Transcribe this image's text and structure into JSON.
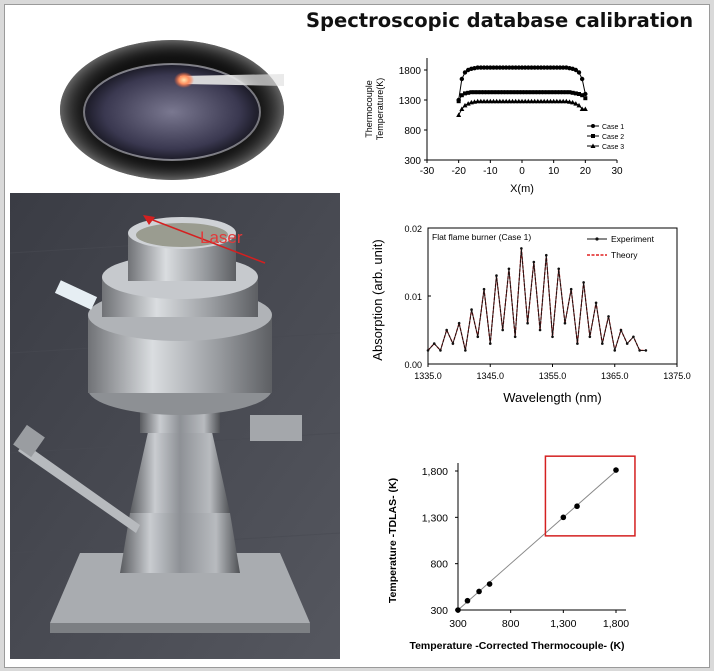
{
  "title": "Spectroscopic database calibration",
  "photo_label": "Laser",
  "colors": {
    "experiment": "#111111",
    "theory": "#e02020",
    "highlight_box": "#d42020",
    "laser_arrow": "#d42020"
  },
  "chart_data": [
    {
      "type": "line",
      "xlabel": "X(m)",
      "ylabel": "Thermocouple Temperature(K)",
      "xlim": [
        -30,
        30
      ],
      "ylim": [
        300,
        2000
      ],
      "xticks": [
        "-30",
        "-20",
        "-10",
        "0",
        "10",
        "20",
        "30"
      ],
      "yticks": [
        "300",
        "800",
        "1300",
        "1800"
      ],
      "x": [
        -20,
        -19,
        -18,
        -17,
        -16,
        -15,
        -14,
        -13,
        -12,
        -11,
        -10,
        -9,
        -8,
        -7,
        -6,
        -5,
        -4,
        -3,
        -2,
        -1,
        0,
        1,
        2,
        3,
        4,
        5,
        6,
        7,
        8,
        9,
        10,
        11,
        12,
        13,
        14,
        15,
        16,
        17,
        18,
        19,
        20
      ],
      "series": [
        {
          "name": "Case 1",
          "marker": "circle",
          "values": [
            1300,
            1650,
            1760,
            1800,
            1820,
            1830,
            1840,
            1840,
            1840,
            1840,
            1840,
            1840,
            1840,
            1840,
            1840,
            1840,
            1840,
            1840,
            1840,
            1840,
            1840,
            1840,
            1840,
            1840,
            1840,
            1840,
            1840,
            1840,
            1840,
            1840,
            1840,
            1840,
            1840,
            1840,
            1840,
            1830,
            1820,
            1800,
            1760,
            1650,
            1400
          ]
        },
        {
          "name": "Case 2",
          "marker": "square",
          "values": [
            1280,
            1380,
            1410,
            1420,
            1430,
            1430,
            1430,
            1430,
            1430,
            1430,
            1430,
            1430,
            1430,
            1430,
            1430,
            1430,
            1430,
            1430,
            1430,
            1430,
            1430,
            1430,
            1430,
            1430,
            1430,
            1430,
            1430,
            1430,
            1430,
            1430,
            1430,
            1430,
            1430,
            1430,
            1430,
            1430,
            1420,
            1410,
            1400,
            1380,
            1330
          ]
        },
        {
          "name": "Case 3",
          "marker": "triangle",
          "values": [
            1050,
            1150,
            1210,
            1240,
            1260,
            1270,
            1280,
            1280,
            1280,
            1280,
            1280,
            1280,
            1280,
            1280,
            1280,
            1280,
            1280,
            1280,
            1280,
            1280,
            1280,
            1280,
            1280,
            1280,
            1280,
            1280,
            1280,
            1280,
            1280,
            1280,
            1280,
            1280,
            1280,
            1280,
            1280,
            1270,
            1260,
            1240,
            1210,
            1150,
            1150
          ]
        }
      ],
      "legend": "bottom-right"
    },
    {
      "type": "line",
      "annotation": "Flat flame burner (Case 1)",
      "xlabel": "Wavelength (nm)",
      "ylabel": "Absorption (arb. unit)",
      "xlim": [
        1335,
        1375
      ],
      "ylim": [
        0,
        0.02
      ],
      "xticks": [
        "1335.0",
        "1345.0",
        "1355.0",
        "1365.0",
        "1375.0"
      ],
      "yticks": [
        "0.00",
        "0.01",
        "0.02"
      ],
      "x": [
        1335,
        1336,
        1337,
        1338,
        1339,
        1340,
        1341,
        1342,
        1343,
        1344,
        1345,
        1346,
        1347,
        1348,
        1349,
        1350,
        1351,
        1352,
        1353,
        1354,
        1355,
        1356,
        1357,
        1358,
        1359,
        1360,
        1361,
        1362,
        1363,
        1364,
        1365,
        1366,
        1367,
        1368,
        1369,
        1370
      ],
      "series": [
        {
          "name": "Experiment",
          "style": "solid-dots",
          "values": [
            0.002,
            0.003,
            0.002,
            0.005,
            0.003,
            0.006,
            0.002,
            0.008,
            0.004,
            0.011,
            0.003,
            0.013,
            0.005,
            0.014,
            0.004,
            0.017,
            0.006,
            0.015,
            0.005,
            0.016,
            0.004,
            0.014,
            0.006,
            0.011,
            0.003,
            0.012,
            0.004,
            0.009,
            0.003,
            0.007,
            0.002,
            0.005,
            0.003,
            0.004,
            0.002,
            0.002
          ]
        },
        {
          "name": "Theory",
          "style": "dashed",
          "values": [
            0.002,
            0.003,
            0.002,
            0.005,
            0.003,
            0.006,
            0.002,
            0.008,
            0.004,
            0.011,
            0.003,
            0.013,
            0.005,
            0.014,
            0.004,
            0.017,
            0.006,
            0.015,
            0.005,
            0.016,
            0.004,
            0.014,
            0.006,
            0.011,
            0.003,
            0.012,
            0.004,
            0.009,
            0.003,
            0.007,
            0.002,
            0.005,
            0.003,
            0.004,
            0.002,
            0.002
          ]
        }
      ],
      "legend": "top-right"
    },
    {
      "type": "scatter",
      "xlabel": "Temperature -Corrected Thermocouple- (K)",
      "ylabel": "Temperature -TDLAS- (K)",
      "xlim": [
        300,
        1800
      ],
      "ylim": [
        300,
        1800
      ],
      "xticks": [
        "300",
        "800",
        "1,300",
        "1,800"
      ],
      "yticks": [
        "300",
        "800",
        "1,300",
        "1,800"
      ],
      "points": [
        {
          "x": 300,
          "y": 300
        },
        {
          "x": 390,
          "y": 400
        },
        {
          "x": 500,
          "y": 500
        },
        {
          "x": 600,
          "y": 580
        },
        {
          "x": 1300,
          "y": 1300
        },
        {
          "x": 1430,
          "y": 1420
        },
        {
          "x": 1800,
          "y": 1810
        }
      ],
      "fit_line": [
        [
          300,
          300
        ],
        [
          1800,
          1800
        ]
      ],
      "highlight_box": {
        "x_range": [
          1130,
          1980
        ],
        "y_range": [
          1100,
          1960
        ]
      }
    }
  ]
}
